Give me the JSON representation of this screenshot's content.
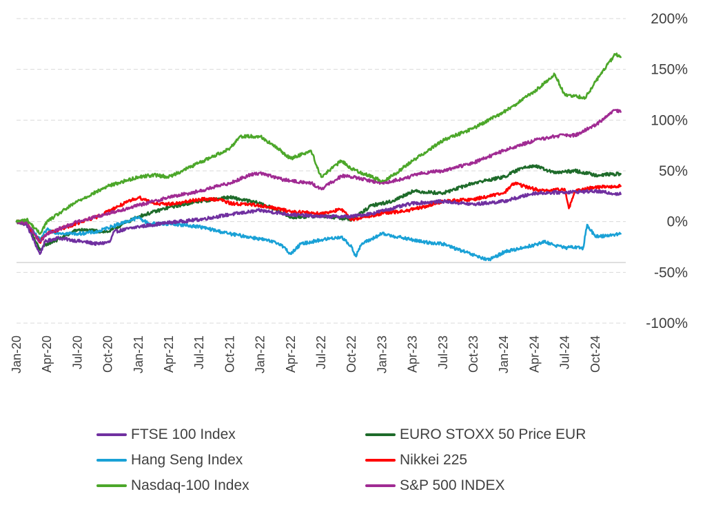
{
  "chart_data": {
    "type": "line",
    "title": "",
    "xlabel": "",
    "ylabel": "",
    "ylim": [
      -100,
      200
    ],
    "yticks": [
      -100,
      -50,
      0,
      50,
      100,
      150,
      200
    ],
    "ytick_labels": [
      "-100%",
      "-50%",
      "0%",
      "50%",
      "100%",
      "150%",
      "200%"
    ],
    "xlim": [
      0,
      60
    ],
    "xticks": [
      0,
      3,
      6,
      9,
      12,
      15,
      18,
      21,
      24,
      27,
      30,
      33,
      36,
      39,
      42,
      45,
      48,
      51,
      54,
      57
    ],
    "xtick_labels": [
      "Jan-20",
      "Apr-20",
      "Jul-20",
      "Oct-20",
      "Jan-21",
      "Apr-21",
      "Jul-21",
      "Oct-21",
      "Jan-22",
      "Apr-22",
      "Jul-22",
      "Oct-22",
      "Jan-23",
      "Apr-23",
      "Jul-23",
      "Oct-23",
      "Jan-24",
      "Apr-24",
      "Jul-24",
      "Oct-24"
    ],
    "grid": true,
    "legend_position": "bottom",
    "series": [
      {
        "name": "FTSE 100 Index",
        "color": "#7030A0",
        "points": [
          [
            0,
            0
          ],
          [
            1,
            -3
          ],
          [
            2.3,
            -32
          ],
          [
            2.8,
            -20
          ],
          [
            4,
            -16
          ],
          [
            6,
            -19
          ],
          [
            8,
            -22
          ],
          [
            9.2,
            -20
          ],
          [
            9.6,
            -10
          ],
          [
            12,
            -5
          ],
          [
            15,
            -1
          ],
          [
            18,
            2
          ],
          [
            21,
            7
          ],
          [
            24,
            11
          ],
          [
            27,
            7
          ],
          [
            30,
            5
          ],
          [
            33,
            5
          ],
          [
            35,
            8
          ],
          [
            37,
            13
          ],
          [
            39,
            18
          ],
          [
            42,
            20
          ],
          [
            45,
            17
          ],
          [
            48,
            20
          ],
          [
            51,
            28
          ],
          [
            54,
            29
          ],
          [
            57,
            30
          ],
          [
            59.5,
            27
          ]
        ]
      },
      {
        "name": "EURO STOXX 50 Price EUR",
        "color": "#1E6B2A",
        "points": [
          [
            0,
            0
          ],
          [
            1,
            -2
          ],
          [
            2.3,
            -28
          ],
          [
            3,
            -22
          ],
          [
            4,
            -18
          ],
          [
            6,
            -8
          ],
          [
            9,
            -10
          ],
          [
            12,
            5
          ],
          [
            15,
            14
          ],
          [
            18,
            20
          ],
          [
            21,
            24
          ],
          [
            24,
            18
          ],
          [
            26,
            10
          ],
          [
            27,
            4
          ],
          [
            30,
            6
          ],
          [
            33,
            2
          ],
          [
            35,
            16
          ],
          [
            37,
            20
          ],
          [
            39,
            30
          ],
          [
            42,
            28
          ],
          [
            45,
            38
          ],
          [
            48,
            44
          ],
          [
            50,
            54
          ],
          [
            51,
            55
          ],
          [
            53,
            48
          ],
          [
            55,
            50
          ],
          [
            57,
            46
          ],
          [
            59.5,
            47
          ]
        ]
      },
      {
        "name": "Hang Seng Index",
        "color": "#1AA1D6",
        "points": [
          [
            0,
            0
          ],
          [
            1,
            -2
          ],
          [
            2.3,
            -18
          ],
          [
            3,
            -8
          ],
          [
            4,
            -11
          ],
          [
            6,
            -12
          ],
          [
            8,
            -10
          ],
          [
            9,
            -6
          ],
          [
            12,
            4
          ],
          [
            13,
            -2
          ],
          [
            15,
            -2
          ],
          [
            18,
            -5
          ],
          [
            21,
            -12
          ],
          [
            24,
            -17
          ],
          [
            26,
            -22
          ],
          [
            27,
            -32
          ],
          [
            28,
            -22
          ],
          [
            30,
            -18
          ],
          [
            32,
            -15
          ],
          [
            33,
            -25
          ],
          [
            33.4,
            -34
          ],
          [
            34,
            -22
          ],
          [
            36,
            -12
          ],
          [
            38,
            -16
          ],
          [
            40,
            -20
          ],
          [
            42,
            -22
          ],
          [
            45,
            -33
          ],
          [
            46.5,
            -38
          ],
          [
            48,
            -30
          ],
          [
            51,
            -23
          ],
          [
            52,
            -20
          ],
          [
            54,
            -26
          ],
          [
            55,
            -25
          ],
          [
            55.8,
            -26
          ],
          [
            56.2,
            -3
          ],
          [
            57,
            -15
          ],
          [
            59.5,
            -12
          ]
        ]
      },
      {
        "name": "Nikkei 225",
        "color": "#FF0000",
        "points": [
          [
            0,
            0
          ],
          [
            1,
            -2
          ],
          [
            2.3,
            -20
          ],
          [
            3,
            -12
          ],
          [
            5,
            -5
          ],
          [
            8,
            5
          ],
          [
            10,
            15
          ],
          [
            12,
            24
          ],
          [
            14,
            17
          ],
          [
            16,
            18
          ],
          [
            18,
            22
          ],
          [
            20,
            22
          ],
          [
            21,
            18
          ],
          [
            24,
            16
          ],
          [
            27,
            10
          ],
          [
            30,
            8
          ],
          [
            32,
            12
          ],
          [
            33,
            2
          ],
          [
            36,
            8
          ],
          [
            38,
            10
          ],
          [
            40,
            14
          ],
          [
            42,
            20
          ],
          [
            45,
            22
          ],
          [
            48,
            28
          ],
          [
            49,
            38
          ],
          [
            51,
            32
          ],
          [
            52,
            30
          ],
          [
            54,
            32
          ],
          [
            54.4,
            13
          ],
          [
            55,
            30
          ],
          [
            57,
            34
          ],
          [
            59.5,
            35
          ]
        ]
      },
      {
        "name": "Nasdaq-100 Index",
        "color": "#4CA72A",
        "points": [
          [
            0,
            0
          ],
          [
            1,
            2
          ],
          [
            2.3,
            -12
          ],
          [
            3,
            0
          ],
          [
            6,
            20
          ],
          [
            9,
            35
          ],
          [
            12,
            44
          ],
          [
            13.5,
            46
          ],
          [
            15,
            44
          ],
          [
            18,
            58
          ],
          [
            21,
            72
          ],
          [
            22,
            84
          ],
          [
            24,
            84
          ],
          [
            26,
            70
          ],
          [
            27,
            62
          ],
          [
            29,
            70
          ],
          [
            30,
            44
          ],
          [
            32,
            60
          ],
          [
            33,
            52
          ],
          [
            36,
            40
          ],
          [
            37,
            45
          ],
          [
            39,
            60
          ],
          [
            42,
            80
          ],
          [
            45,
            92
          ],
          [
            48,
            108
          ],
          [
            51,
            128
          ],
          [
            53,
            145
          ],
          [
            54,
            125
          ],
          [
            56,
            122
          ],
          [
            57.5,
            145
          ],
          [
            59,
            165
          ],
          [
            59.5,
            162
          ]
        ]
      },
      {
        "name": "S&P 500 INDEX",
        "color": "#A02B93",
        "points": [
          [
            0,
            0
          ],
          [
            1,
            -1
          ],
          [
            2.3,
            -20
          ],
          [
            3,
            -12
          ],
          [
            6,
            0
          ],
          [
            9,
            8
          ],
          [
            12,
            16
          ],
          [
            15,
            24
          ],
          [
            18,
            30
          ],
          [
            21,
            38
          ],
          [
            23,
            46
          ],
          [
            24,
            48
          ],
          [
            26,
            42
          ],
          [
            27,
            40
          ],
          [
            29,
            38
          ],
          [
            30,
            32
          ],
          [
            32,
            45
          ],
          [
            33,
            44
          ],
          [
            35,
            40
          ],
          [
            36,
            38
          ],
          [
            38,
            42
          ],
          [
            40,
            48
          ],
          [
            42,
            50
          ],
          [
            45,
            58
          ],
          [
            48,
            70
          ],
          [
            51,
            80
          ],
          [
            53,
            84
          ],
          [
            54,
            85
          ],
          [
            55,
            85
          ],
          [
            57,
            95
          ],
          [
            59,
            110
          ],
          [
            59.5,
            108
          ]
        ]
      }
    ]
  }
}
